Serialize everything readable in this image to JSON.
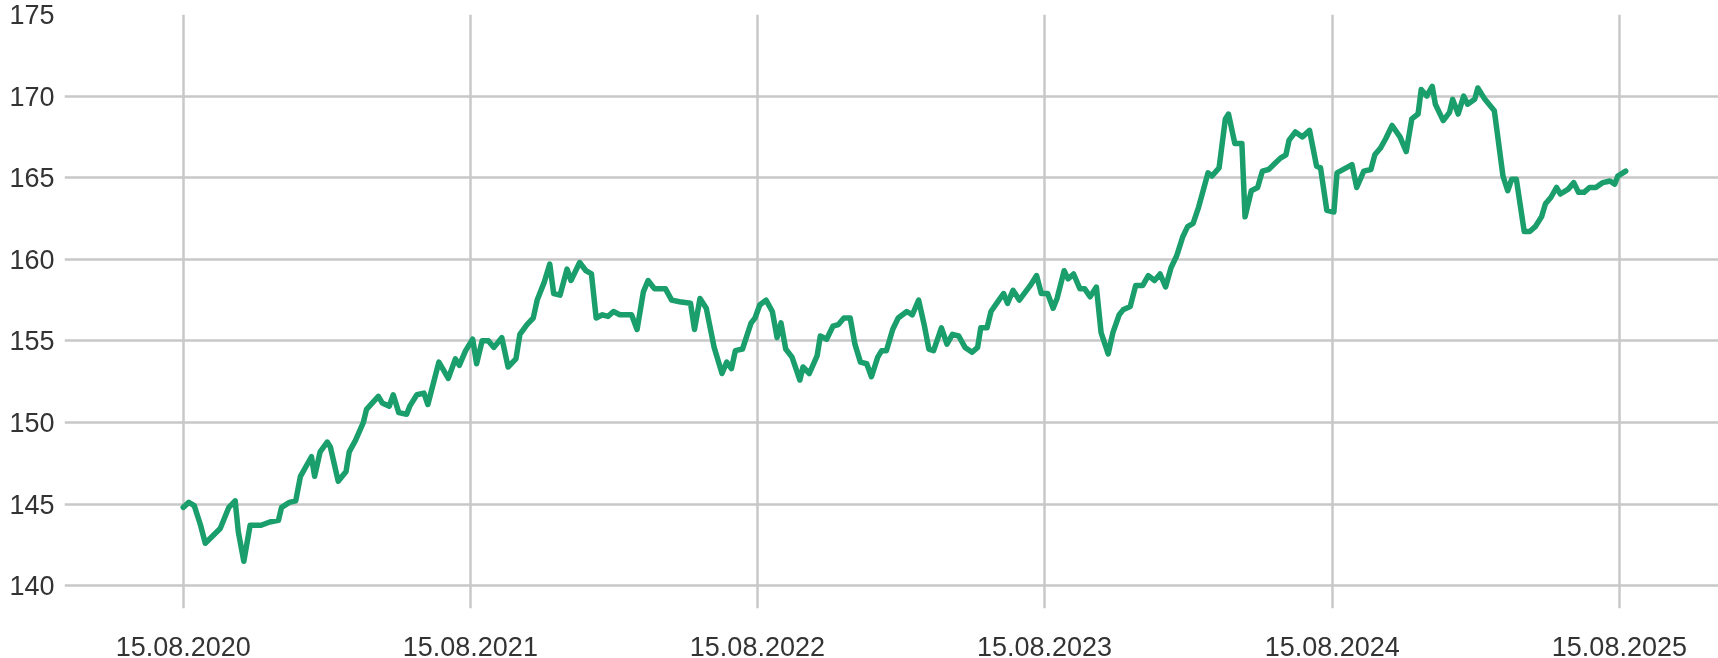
{
  "chart_data": {
    "type": "line",
    "grid": true,
    "line_style": "solid",
    "xlim": [
      "2020-03-17",
      "2025-12-19"
    ],
    "ylim": [
      138.6,
      175
    ],
    "yticks": [
      140,
      145,
      150,
      155,
      160,
      165,
      170,
      175
    ],
    "xticks": [
      {
        "value": "2020-08-15",
        "label": "15.08.2020"
      },
      {
        "value": "2021-08-15",
        "label": "15.08.2021"
      },
      {
        "value": "2022-08-15",
        "label": "15.08.2022"
      },
      {
        "value": "2023-08-15",
        "label": "15.08.2023"
      },
      {
        "value": "2024-08-15",
        "label": "15.08.2024"
      },
      {
        "value": "2025-08-15",
        "label": "15.08.2025"
      }
    ],
    "x": [
      "2020-08-15",
      "2020-08-22",
      "2020-08-29",
      "2020-09-06",
      "2020-09-12",
      "2020-10-01",
      "2020-10-12",
      "2020-10-20",
      "2020-10-24",
      "2020-10-31",
      "2020-11-08",
      "2020-11-22",
      "2020-12-03",
      "2020-12-14",
      "2020-12-18",
      "2020-12-28",
      "2021-01-05",
      "2021-01-11",
      "2021-01-25",
      "2021-01-29",
      "2021-02-05",
      "2021-02-14",
      "2021-02-18",
      "2021-02-28",
      "2021-03-10",
      "2021-03-14",
      "2021-03-22",
      "2021-04-01",
      "2021-04-05",
      "2021-04-20",
      "2021-04-25",
      "2021-05-04",
      "2021-05-09",
      "2021-05-16",
      "2021-05-26",
      "2021-05-30",
      "2021-06-08",
      "2021-06-17",
      "2021-06-22",
      "2021-07-06",
      "2021-07-18",
      "2021-07-27",
      "2021-08-01",
      "2021-08-09",
      "2021-08-18",
      "2021-08-23",
      "2021-08-30",
      "2021-09-07",
      "2021-09-14",
      "2021-09-24",
      "2021-10-02",
      "2021-10-12",
      "2021-10-17",
      "2021-10-26",
      "2021-11-03",
      "2021-11-08",
      "2021-11-17",
      "2021-11-24",
      "2021-11-29",
      "2021-12-07",
      "2021-12-16",
      "2021-12-21",
      "2022-01-01",
      "2022-01-09",
      "2022-01-16",
      "2022-01-22",
      "2022-01-30",
      "2022-02-06",
      "2022-02-13",
      "2022-02-21",
      "2022-03-08",
      "2022-03-15",
      "2022-03-23",
      "2022-03-29",
      "2022-04-06",
      "2022-04-20",
      "2022-04-28",
      "2022-05-08",
      "2022-05-22",
      "2022-05-27",
      "2022-06-03",
      "2022-06-11",
      "2022-06-21",
      "2022-07-01",
      "2022-07-07",
      "2022-07-13",
      "2022-07-18",
      "2022-07-27",
      "2022-08-07",
      "2022-08-12",
      "2022-08-18",
      "2022-08-26",
      "2022-09-03",
      "2022-09-09",
      "2022-09-14",
      "2022-09-20",
      "2022-09-28",
      "2022-10-08",
      "2022-10-12",
      "2022-10-20",
      "2022-10-30",
      "2022-11-03",
      "2022-11-11",
      "2022-11-19",
      "2022-11-26",
      "2022-12-03",
      "2022-12-11",
      "2022-12-17",
      "2022-12-24",
      "2023-01-01",
      "2023-01-07",
      "2023-01-15",
      "2023-01-20",
      "2023-01-26",
      "2023-02-03",
      "2023-02-10",
      "2023-02-21",
      "2023-02-28",
      "2023-03-08",
      "2023-03-15",
      "2023-03-21",
      "2023-03-27",
      "2023-04-06",
      "2023-04-13",
      "2023-04-20",
      "2023-04-28",
      "2023-05-06",
      "2023-05-15",
      "2023-05-22",
      "2023-05-26",
      "2023-06-03",
      "2023-06-08",
      "2023-06-18",
      "2023-06-24",
      "2023-06-29",
      "2023-07-06",
      "2023-07-14",
      "2023-07-28",
      "2023-08-05",
      "2023-08-11",
      "2023-08-19",
      "2023-08-26",
      "2023-08-31",
      "2023-09-09",
      "2023-09-14",
      "2023-09-21",
      "2023-09-29",
      "2023-10-05",
      "2023-10-12",
      "2023-10-20",
      "2023-10-26",
      "2023-11-04",
      "2023-11-10",
      "2023-11-18",
      "2023-11-23",
      "2023-12-02",
      "2023-12-09",
      "2023-12-18",
      "2023-12-25",
      "2024-01-02",
      "2024-01-09",
      "2024-01-16",
      "2024-01-23",
      "2024-01-30",
      "2024-02-07",
      "2024-02-13",
      "2024-02-20",
      "2024-02-27",
      "2024-03-10",
      "2024-03-15",
      "2024-03-24",
      "2024-04-01",
      "2024-04-05",
      "2024-04-13",
      "2024-04-22",
      "2024-04-26",
      "2024-05-04",
      "2024-05-12",
      "2024-05-18",
      "2024-05-26",
      "2024-06-10",
      "2024-06-17",
      "2024-06-21",
      "2024-06-29",
      "2024-07-08",
      "2024-07-17",
      "2024-07-26",
      "2024-07-31",
      "2024-08-08",
      "2024-08-17",
      "2024-08-21",
      "2024-09-09",
      "2024-09-15",
      "2024-09-24",
      "2024-10-03",
      "2024-10-08",
      "2024-10-15",
      "2024-10-22",
      "2024-10-30",
      "2024-11-09",
      "2024-11-17",
      "2024-11-24",
      "2024-12-02",
      "2024-12-06",
      "2024-12-13",
      "2024-12-20",
      "2024-12-24",
      "2025-01-03",
      "2025-01-11",
      "2025-01-15",
      "2025-01-22",
      "2025-01-29",
      "2025-02-03",
      "2025-02-12",
      "2025-02-16",
      "2025-02-25",
      "2025-03-09",
      "2025-03-20",
      "2025-03-26",
      "2025-03-31",
      "2025-04-06",
      "2025-04-16",
      "2025-04-23",
      "2025-04-30",
      "2025-05-08",
      "2025-05-13",
      "2025-05-20",
      "2025-05-27",
      "2025-06-01",
      "2025-06-11",
      "2025-06-18",
      "2025-06-24",
      "2025-07-01",
      "2025-07-08",
      "2025-07-16",
      "2025-07-25",
      "2025-08-03",
      "2025-08-09",
      "2025-08-13",
      "2025-08-23"
    ],
    "series": [
      {
        "color": "#1a9e6b",
        "values": [
          144.8,
          145.1,
          144.9,
          143.7,
          142.6,
          143.5,
          144.8,
          145.2,
          143.3,
          141.5,
          143.7,
          143.7,
          143.9,
          144.0,
          144.8,
          145.1,
          145.2,
          146.7,
          147.9,
          146.7,
          148.2,
          148.8,
          148.5,
          146.4,
          147.0,
          148.2,
          148.9,
          150.0,
          150.8,
          151.6,
          151.2,
          151.0,
          151.7,
          150.6,
          150.5,
          151.0,
          151.7,
          151.8,
          151.1,
          153.7,
          152.7,
          153.9,
          153.5,
          154.4,
          155.1,
          153.6,
          155.0,
          155.0,
          154.6,
          155.2,
          153.4,
          153.9,
          155.4,
          156.0,
          156.4,
          157.5,
          158.6,
          159.7,
          157.9,
          157.8,
          159.4,
          158.7,
          159.8,
          159.3,
          159.1,
          156.4,
          156.6,
          156.5,
          156.8,
          156.6,
          156.6,
          155.7,
          158.0,
          158.7,
          158.2,
          158.2,
          157.5,
          157.4,
          157.3,
          155.7,
          157.6,
          157.0,
          154.6,
          153.0,
          153.7,
          153.3,
          154.4,
          154.5,
          156.1,
          156.4,
          157.2,
          157.5,
          156.8,
          155.2,
          156.1,
          154.5,
          154.0,
          152.6,
          153.4,
          153.0,
          154.1,
          155.3,
          155.1,
          155.9,
          156.0,
          156.4,
          156.4,
          154.8,
          153.7,
          153.6,
          152.8,
          154.0,
          154.4,
          154.4,
          155.7,
          156.4,
          156.8,
          156.6,
          157.5,
          156.0,
          154.5,
          154.4,
          155.8,
          154.8,
          155.4,
          155.3,
          154.6,
          154.3,
          154.6,
          155.8,
          155.8,
          156.8,
          157.5,
          157.9,
          157.3,
          158.1,
          157.5,
          158.4,
          159.0,
          157.9,
          157.9,
          157.0,
          157.6,
          159.3,
          158.8,
          159.1,
          158.2,
          158.2,
          157.7,
          158.3,
          155.5,
          154.2,
          155.5,
          156.6,
          156.9,
          157.1,
          158.4,
          158.4,
          159.0,
          158.7,
          159.1,
          158.3,
          159.5,
          160.2,
          161.4,
          162.0,
          162.2,
          163.2,
          165.3,
          165.1,
          165.6,
          168.6,
          168.9,
          167.1,
          167.1,
          162.6,
          164.2,
          164.4,
          165.4,
          165.5,
          166.2,
          166.4,
          167.3,
          167.8,
          167.5,
          167.9,
          165.7,
          165.6,
          163.0,
          162.9,
          165.3,
          165.8,
          164.4,
          165.4,
          165.5,
          166.4,
          166.8,
          167.4,
          168.2,
          167.5,
          166.6,
          168.6,
          168.9,
          170.4,
          170.0,
          170.6,
          169.5,
          168.5,
          169.0,
          169.8,
          168.9,
          170.0,
          169.5,
          169.8,
          170.5,
          169.8,
          169.1,
          165.1,
          164.2,
          164.9,
          164.9,
          161.7,
          161.7,
          162.0,
          162.6,
          163.4,
          163.8,
          164.4,
          164.0,
          164.3,
          164.7,
          164.1,
          164.1,
          164.4,
          164.4,
          164.7,
          164.8,
          164.6,
          165.1,
          165.4
        ]
      }
    ]
  }
}
